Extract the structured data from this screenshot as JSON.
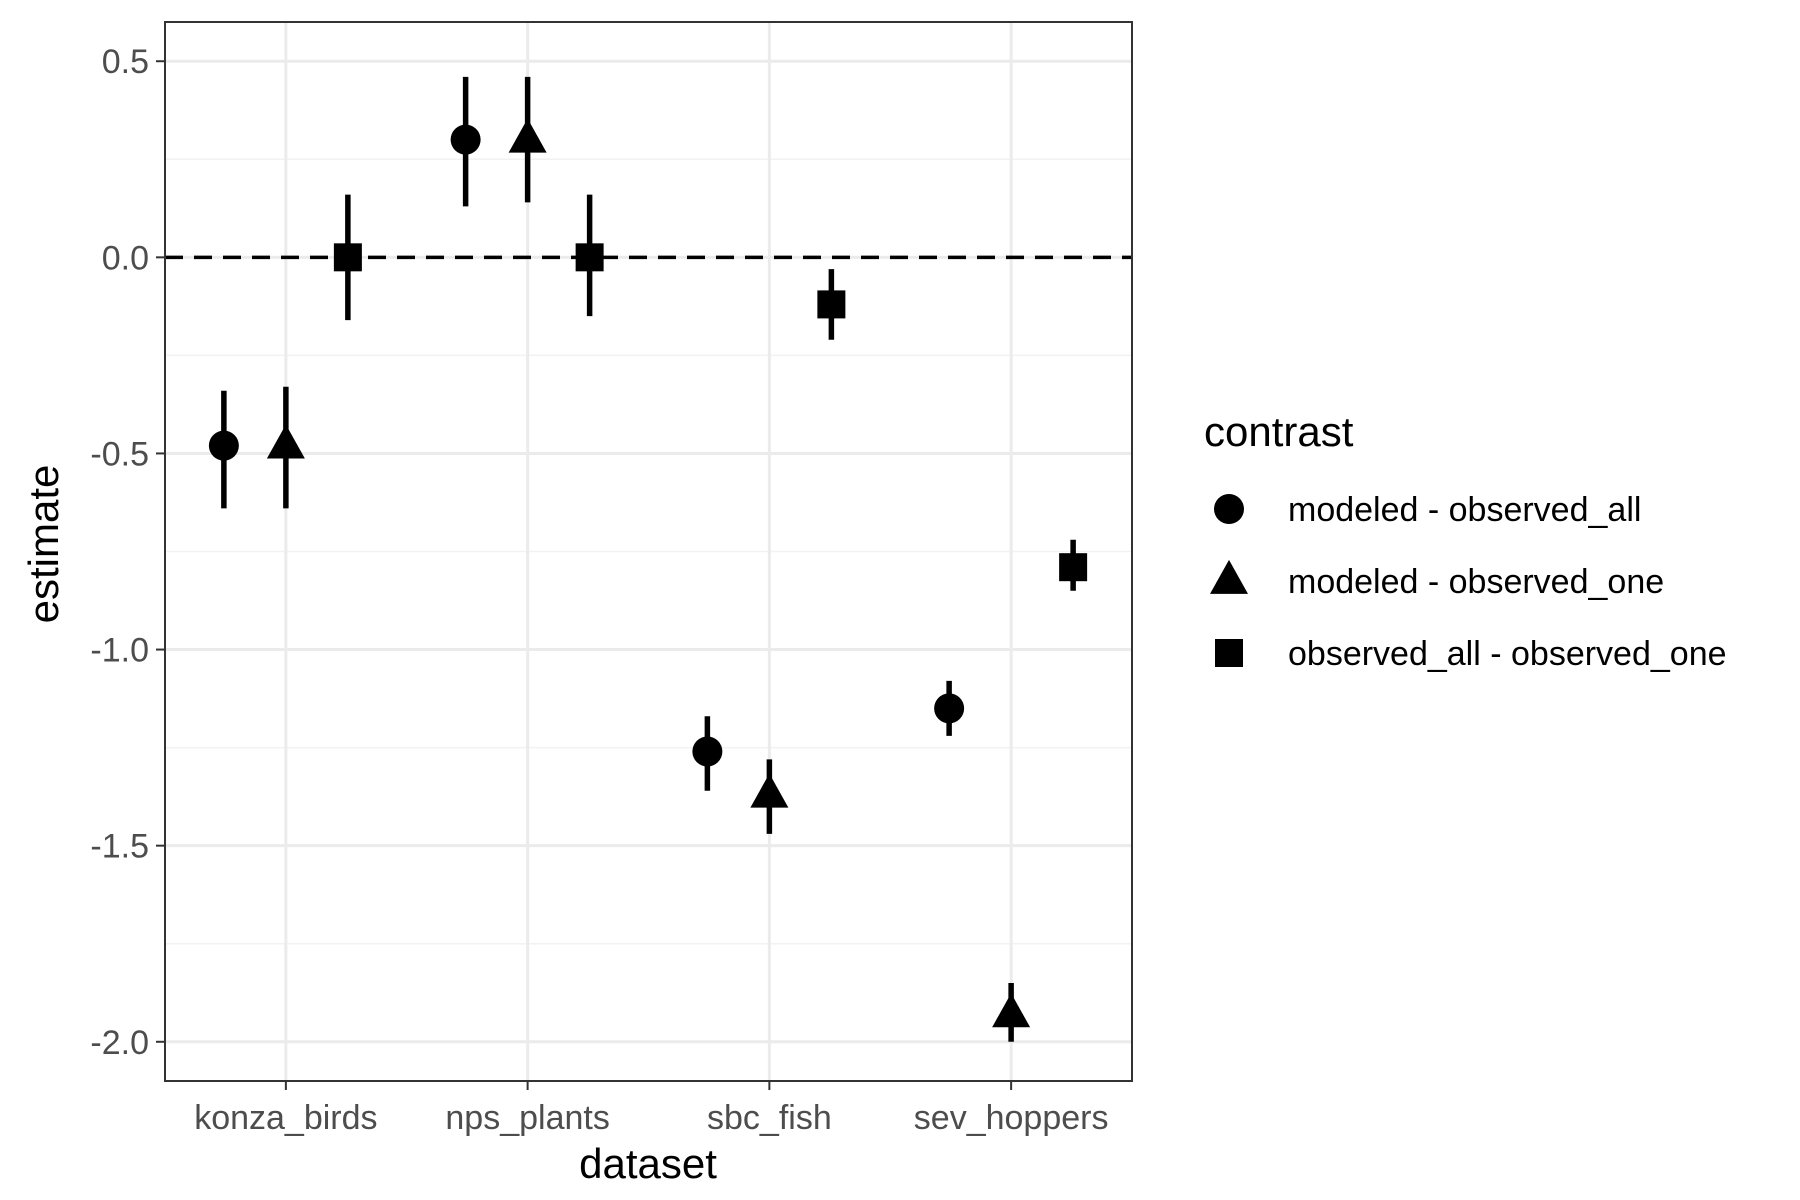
{
  "chart_data": {
    "type": "scatter",
    "subtype": "point-range (dodged)",
    "xlabel": "dataset",
    "ylabel": "estimate",
    "categories": [
      "konza_birds",
      "nps_plants",
      "sbc_fish",
      "sev_hoppers"
    ],
    "ylim": [
      -2.1,
      0.6
    ],
    "y_ticks": [
      0.5,
      0.0,
      -0.5,
      -1.0,
      -1.5,
      -2.0
    ],
    "y_tick_labels": [
      "0.5",
      "0.0",
      "-0.5",
      "-1.0",
      "-1.5",
      "-2.0"
    ],
    "grid": true,
    "reference_line": {
      "y": 0,
      "style": "dashed",
      "color": "#000000"
    },
    "legend": {
      "title": "contrast",
      "position": "right"
    },
    "series": [
      {
        "name": "modeled - observed_all",
        "shape": "circle",
        "points": [
          {
            "category": "konza_birds",
            "estimate": -0.48,
            "lower": -0.64,
            "upper": -0.34
          },
          {
            "category": "nps_plants",
            "estimate": 0.3,
            "lower": 0.13,
            "upper": 0.46
          },
          {
            "category": "sbc_fish",
            "estimate": -1.26,
            "lower": -1.36,
            "upper": -1.17
          },
          {
            "category": "sev_hoppers",
            "estimate": -1.15,
            "lower": -1.22,
            "upper": -1.08
          }
        ]
      },
      {
        "name": "modeled - observed_one",
        "shape": "triangle",
        "points": [
          {
            "category": "konza_birds",
            "estimate": -0.48,
            "lower": -0.64,
            "upper": -0.33
          },
          {
            "category": "nps_plants",
            "estimate": 0.3,
            "lower": 0.14,
            "upper": 0.46
          },
          {
            "category": "sbc_fish",
            "estimate": -1.37,
            "lower": -1.47,
            "upper": -1.28
          },
          {
            "category": "sev_hoppers",
            "estimate": -1.93,
            "lower": -2.0,
            "upper": -1.85
          }
        ]
      },
      {
        "name": "observed_all - observed_one",
        "shape": "square",
        "points": [
          {
            "category": "konza_birds",
            "estimate": 0.0,
            "lower": -0.16,
            "upper": 0.16
          },
          {
            "category": "nps_plants",
            "estimate": 0.0,
            "lower": -0.15,
            "upper": 0.16
          },
          {
            "category": "sbc_fish",
            "estimate": -0.12,
            "lower": -0.21,
            "upper": -0.03
          },
          {
            "category": "sev_hoppers",
            "estimate": -0.79,
            "lower": -0.85,
            "upper": -0.72
          }
        ]
      }
    ]
  }
}
